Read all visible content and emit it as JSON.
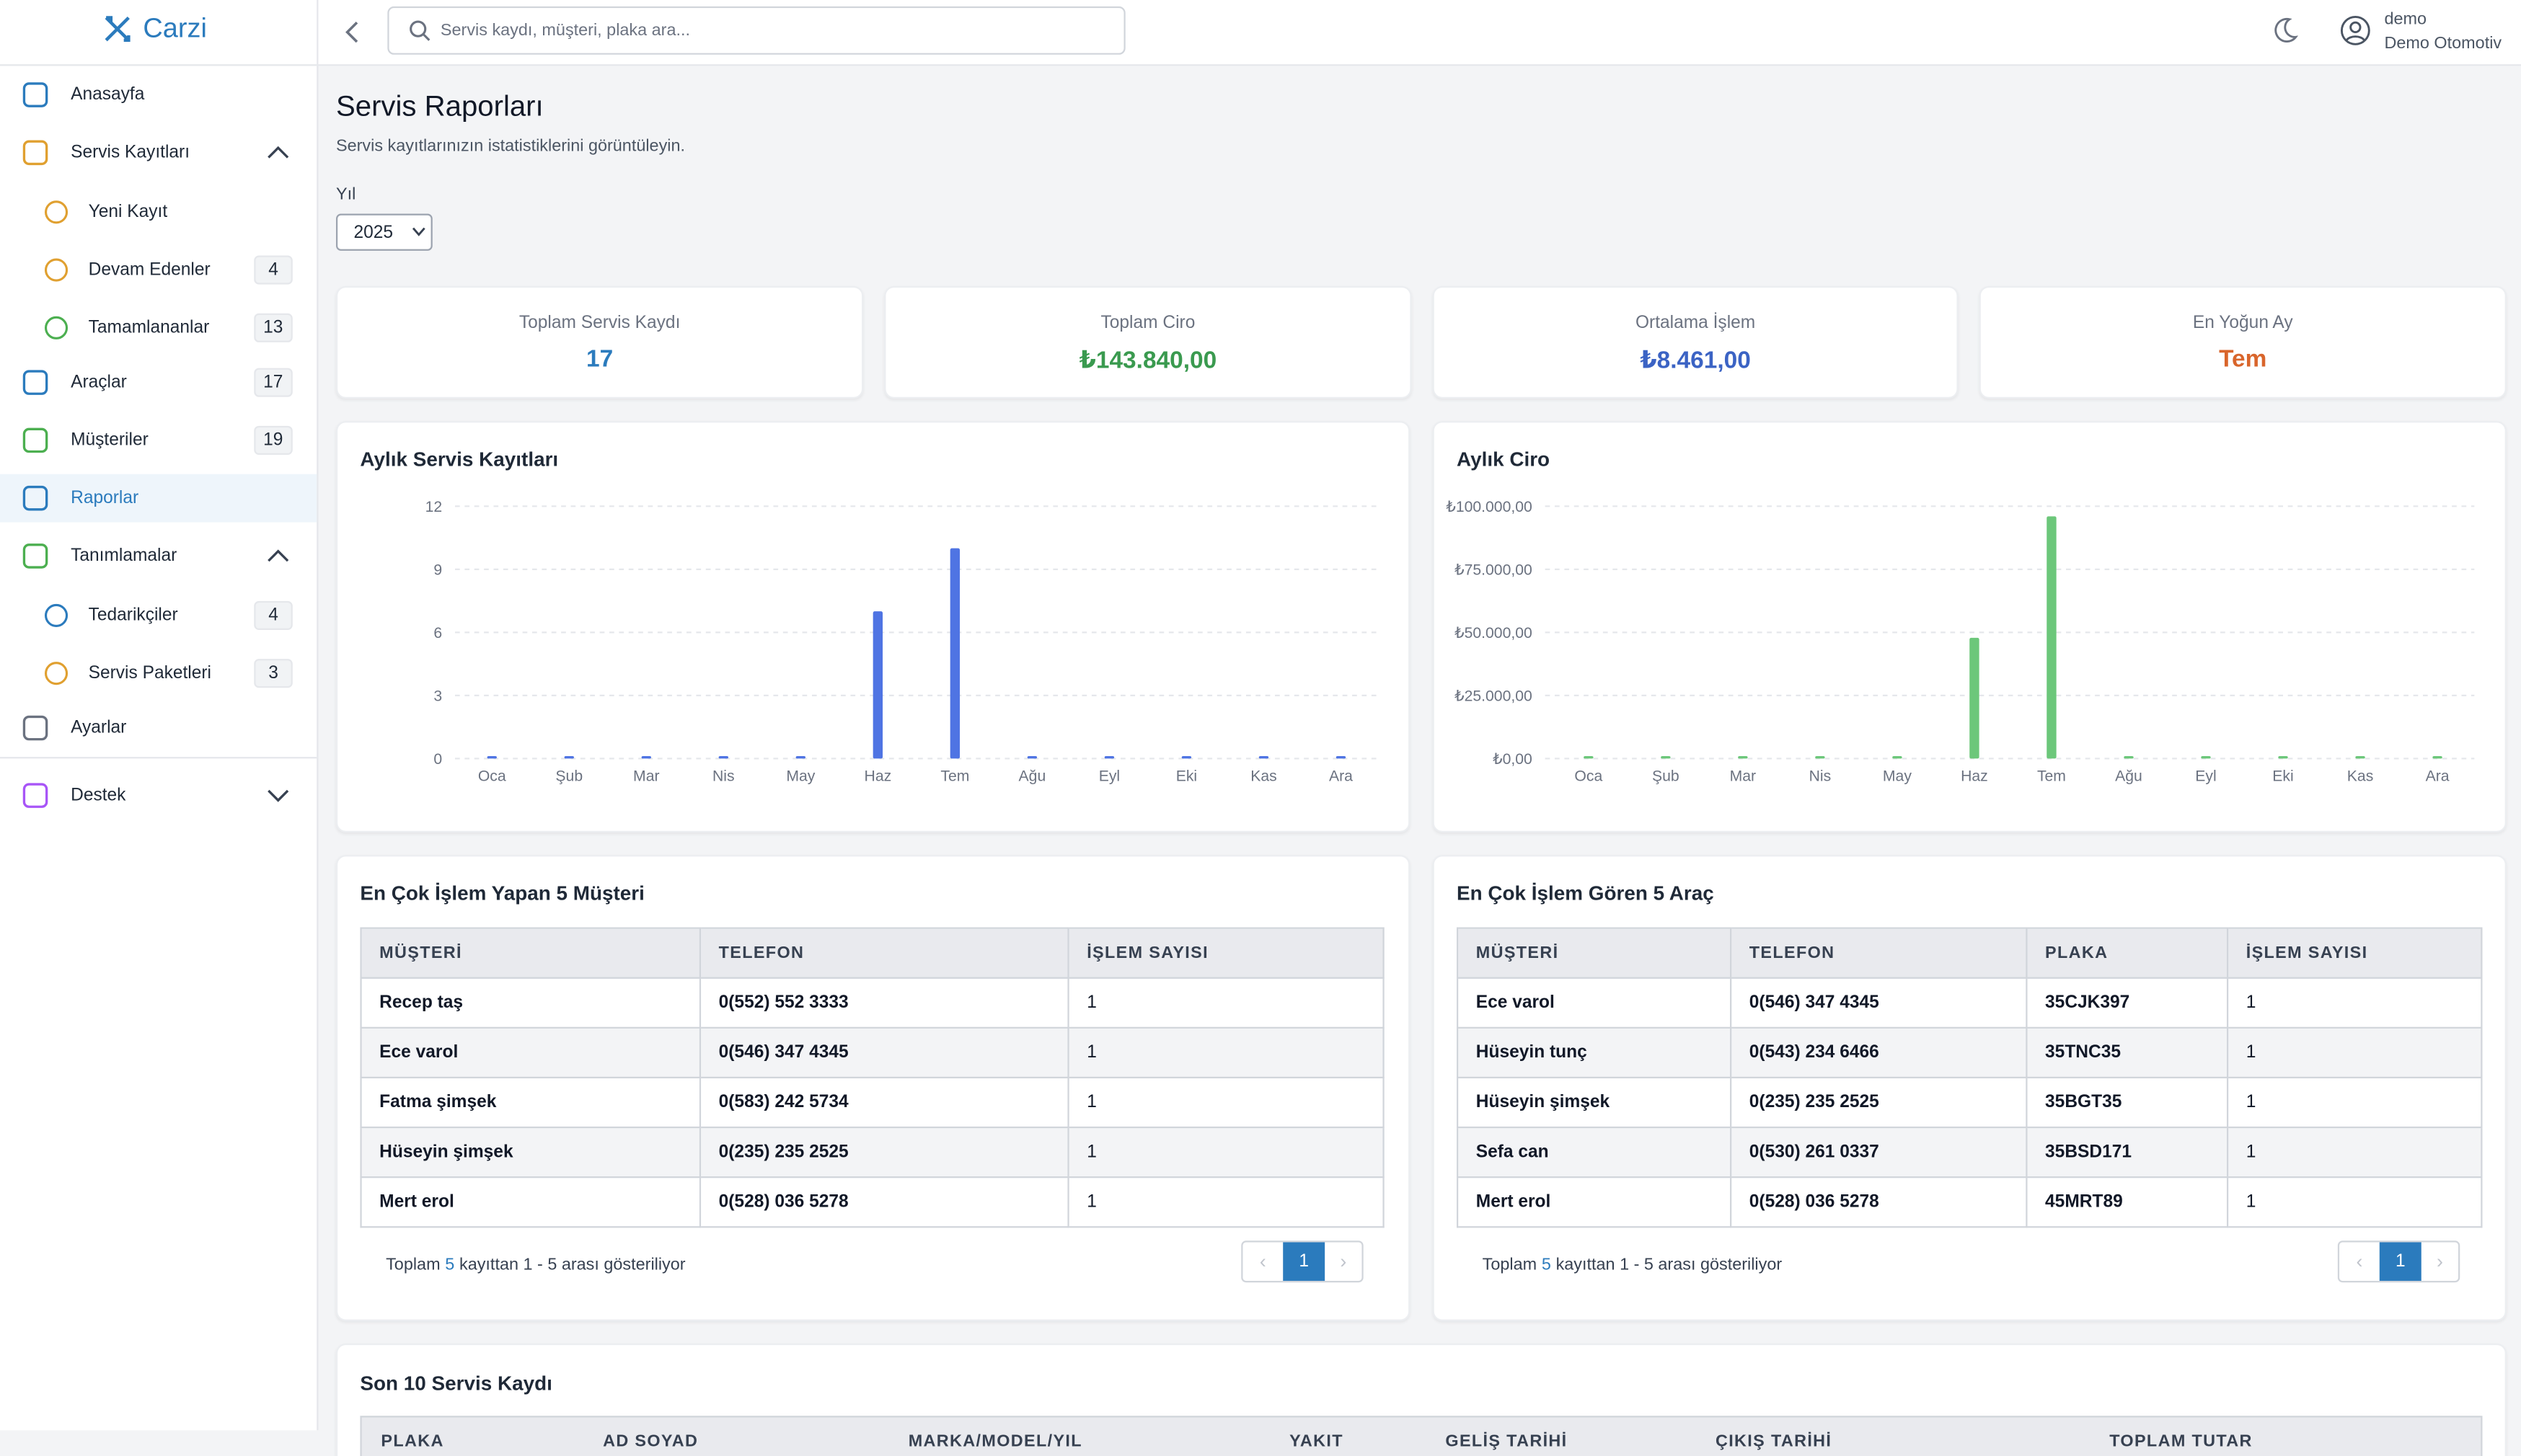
{
  "brand": "Carzi",
  "sidebar": [
    {
      "label": "Anasayfa"
    },
    {
      "label": "Servis Kayıtları"
    },
    {
      "label": "Yeni Kayıt"
    },
    {
      "label": "Devam Edenler",
      "badge": 4
    },
    {
      "label": "Tamamlananlar",
      "badge": 13
    },
    {
      "label": "Araçlar",
      "badge": 17
    },
    {
      "label": "Müşteriler",
      "badge": 19
    },
    {
      "label": "Raporlar"
    },
    {
      "label": "Tanımlamalar"
    },
    {
      "label": "Tedarikçiler",
      "badge": 4
    },
    {
      "label": "Servis Paketleri",
      "badge": 3
    },
    {
      "label": "Ayarlar"
    },
    {
      "label": "Destek"
    }
  ],
  "header": {
    "search_placeholder": "Servis kaydı, müşteri, plaka ara...",
    "user_name": "demo",
    "user_company": "Demo Otomotiv"
  },
  "page": {
    "title": "Servis Raporları",
    "subtitle": "Servis kayıtlarınızın istatistiklerini görüntüleyin.",
    "year_label": "Yıl",
    "year": "2025"
  },
  "stats": [
    {
      "label": "Toplam Servis Kaydı",
      "value": "17"
    },
    {
      "label": "Toplam Ciro",
      "value": "₺143.840,00"
    },
    {
      "label": "Ortalama İşlem",
      "value": "₺8.461,00"
    },
    {
      "label": "En Yoğun Ay",
      "value": "Tem"
    }
  ],
  "charts": [
    {
      "type": "bar",
      "title": "Aylık Servis Kayıtları",
      "color": "#4f74e3",
      "categories": [
        "Oca",
        "Şub",
        "Mar",
        "Nis",
        "May",
        "Haz",
        "Tem",
        "Ağu",
        "Eyl",
        "Eki",
        "Kas",
        "Ara"
      ],
      "values": [
        0,
        0,
        0,
        0,
        0,
        7,
        10,
        0,
        0,
        0,
        0,
        0
      ],
      "ylim": [
        0,
        12
      ],
      "yticks": [
        0,
        3,
        6,
        9,
        12
      ],
      "grid": true
    },
    {
      "type": "bar",
      "title": "Aylık Ciro",
      "color": "#6cc77a",
      "categories": [
        "Oca",
        "Şub",
        "Mar",
        "Nis",
        "May",
        "Haz",
        "Tem",
        "Ağu",
        "Eyl",
        "Eki",
        "Kas",
        "Ara"
      ],
      "values": [
        0,
        0,
        0,
        0,
        0,
        47840,
        96000,
        0,
        0,
        0,
        0,
        0
      ],
      "ylim": [
        0,
        100000
      ],
      "yticks": [
        {
          "value": 0,
          "label": "₺0,00"
        },
        {
          "value": 25000,
          "label": "₺25.000,00"
        },
        {
          "value": 50000,
          "label": "₺50.000,00"
        },
        {
          "value": 75000,
          "label": "₺75.000,00"
        },
        {
          "value": 100000,
          "label": "₺100.000,00"
        }
      ],
      "grid": true
    }
  ],
  "tables": [
    {
      "title": "En Çok İşlem Yapan 5 Müşteri",
      "columns": [
        "MÜŞTERİ",
        "TELEFON",
        "İŞLEM SAYISI"
      ],
      "rows": [
        [
          "Recep taş",
          "0(552) 552 3333",
          1
        ],
        [
          "Ece varol",
          "0(546) 347 4345",
          1
        ],
        [
          "Fatma şimşek",
          "0(583) 242 5734",
          1
        ],
        [
          "Hüseyin şimşek",
          "0(235) 235 2525",
          1
        ],
        [
          "Mert erol",
          "0(528) 036 5278",
          1
        ]
      ],
      "footer": {
        "prefix": "Toplam",
        "count": 5,
        "suffix": "kayıttan 1 - 5 arası gösteriliyor"
      },
      "page": 1
    },
    {
      "title": "En Çok İşlem Gören 5 Araç",
      "columns": [
        "MÜŞTERİ",
        "TELEFON",
        "PLAKA",
        "İŞLEM SAYISI"
      ],
      "rows": [
        [
          "Ece varol",
          "0(546) 347 4345",
          "35CJK397",
          1
        ],
        [
          "Hüseyin tunç",
          "0(543) 234 6466",
          "35TNC35",
          1
        ],
        [
          "Hüseyin şimşek",
          "0(235) 235 2525",
          "35BGT35",
          1
        ],
        [
          "Sefa can",
          "0(530) 261 0337",
          "35BSD171",
          1
        ],
        [
          "Mert erol",
          "0(528) 036 5278",
          "45MRT89",
          1
        ]
      ],
      "footer": {
        "prefix": "Toplam",
        "count": 5,
        "suffix": "kayıttan 1 - 5 arası gösteriliyor"
      },
      "page": 1
    }
  ],
  "recent": {
    "title": "Son 10 Servis Kaydı",
    "columns": [
      "PLAKA",
      "AD SOYAD",
      "MARKA/MODEL/YIL",
      "YAKIT",
      "GELİŞ TARİHİ",
      "ÇIKIŞ TARİHİ",
      "TOPLAM TUTAR"
    ]
  }
}
